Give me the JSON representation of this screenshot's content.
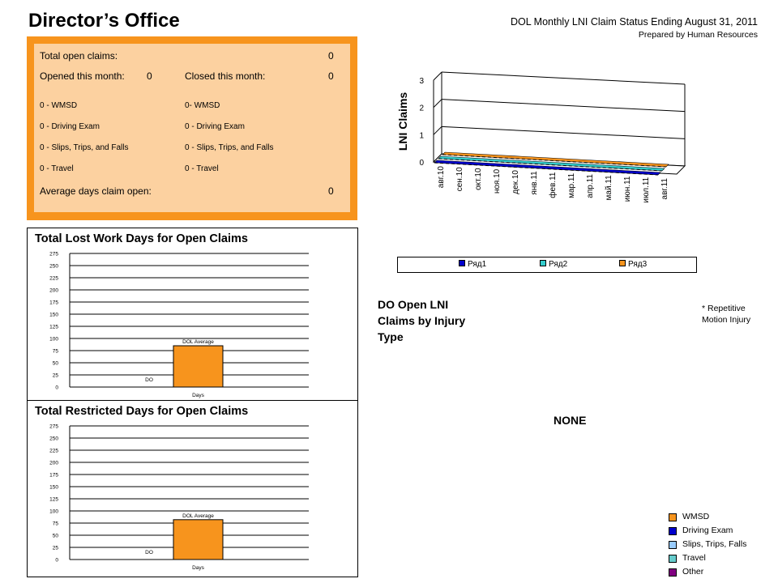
{
  "header": {
    "title": "Director’s Office",
    "report_title": "DOL Monthly LNI Claim Status Ending August 31, 2011",
    "report_subtitle": "Prepared by Human Resources"
  },
  "summary": {
    "total_open_label": "Total open claims:",
    "total_open_value": "0",
    "opened_label": "Opened this month:",
    "opened_value": "0",
    "closed_label": "Closed this month:",
    "closed_value": "0",
    "opened_items": [
      "0 - WMSD",
      "0 - Driving Exam",
      "0 - Slips, Trips, and Falls",
      "0 - Travel"
    ],
    "closed_items": [
      "0- WMSD",
      "0 -  Driving Exam",
      "0 - Slips, Trips, and Falls",
      "0 - Travel"
    ],
    "avg_days_label": "Average days claim open:",
    "avg_days_value": "0"
  },
  "lost_work_panel": {
    "title": "Total Lost Work Days for Open Claims"
  },
  "restricted_panel": {
    "title": "Total Restricted Days for Open Claims"
  },
  "lni_legend": {
    "items": [
      "Ряд1",
      "Ряд2",
      "Ряд3"
    ]
  },
  "do_injury": {
    "title": "DO Open LNI Claims by Injury Type",
    "note": "* Repetitive Motion Injury",
    "none_label": "NONE",
    "legend": [
      {
        "label": "WMSD",
        "color": "#f7941d"
      },
      {
        "label": "Driving Exam",
        "color": "#0000cc"
      },
      {
        "label": "Slips, Trips, Falls",
        "color": "#99ccff"
      },
      {
        "label": "Travel",
        "color": "#66cccc"
      },
      {
        "label": "Other",
        "color": "#800080"
      }
    ]
  },
  "chart_data": [
    {
      "type": "bar",
      "title": "Total Lost Work Days for Open Claims",
      "xlabel": "Days",
      "categories": [
        "Days"
      ],
      "series": [
        {
          "name": "DO",
          "values": [
            0
          ]
        },
        {
          "name": "DOL Average",
          "values": [
            85
          ]
        }
      ],
      "ylim": [
        0,
        275
      ],
      "yticks": [
        0,
        25,
        50,
        75,
        100,
        125,
        150,
        175,
        200,
        225,
        250,
        275
      ],
      "grid": true,
      "colors": {
        "bar": "#f7941d"
      }
    },
    {
      "type": "bar",
      "title": "Total Restricted Days for Open Claims",
      "xlabel": "Days",
      "categories": [
        "Days"
      ],
      "series": [
        {
          "name": "DO",
          "values": [
            0
          ]
        },
        {
          "name": "DOL Average",
          "values": [
            82
          ]
        }
      ],
      "ylim": [
        0,
        275
      ],
      "yticks": [
        0,
        25,
        50,
        75,
        100,
        125,
        150,
        175,
        200,
        225,
        250,
        275
      ],
      "grid": true,
      "colors": {
        "bar": "#f7941d"
      }
    },
    {
      "type": "line",
      "ylabel": "LNI Claims",
      "categories": [
        "авг.10",
        "сен.10",
        "окт.10",
        "ноя.10",
        "дек.10",
        "янв.11",
        "фев.11",
        "мар.11",
        "апр.11",
        "май.11",
        "июн.11",
        "июл.11",
        "авг.11"
      ],
      "series": [
        {
          "name": "Ряд1",
          "values": [
            0,
            0,
            0,
            0,
            0,
            0,
            0,
            0,
            0,
            0,
            0,
            0,
            0
          ],
          "color": "#0000cc"
        },
        {
          "name": "Ряд2",
          "values": [
            0,
            0,
            0,
            0,
            0,
            0,
            0,
            0,
            0,
            0,
            0,
            0,
            0
          ],
          "color": "#33cccc"
        },
        {
          "name": "Ряд3",
          "values": [
            0,
            0,
            0,
            0,
            0,
            0,
            0,
            0,
            0,
            0,
            0,
            0,
            0
          ],
          "color": "#f7941d"
        }
      ],
      "ylim": [
        0,
        3
      ],
      "yticks": [
        0,
        1,
        2,
        3
      ],
      "grid": true,
      "legend": "bottom"
    }
  ]
}
